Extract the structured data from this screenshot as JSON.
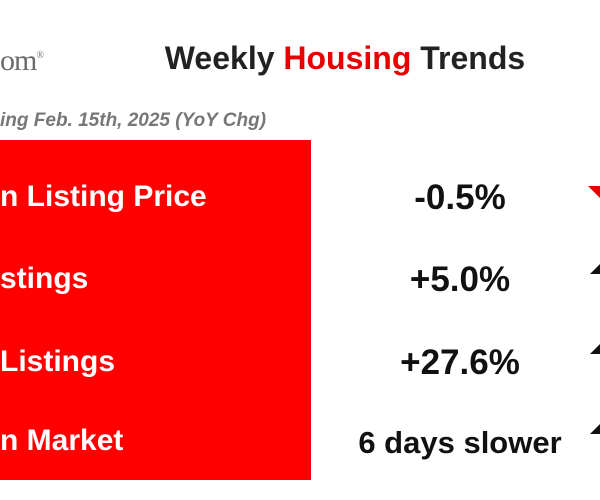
{
  "header": {
    "logo": "om",
    "logo_mark": "®",
    "title": [
      "Weekly ",
      "Housing",
      " Trends"
    ],
    "subtitle": "ing Feb. 15th, 2025 (YoY Chg)"
  },
  "rows": [
    {
      "label": "n Listing Price",
      "value": "-0.5%"
    },
    {
      "label": "stings",
      "value": "+5.0%"
    },
    {
      "label": "Listings",
      "value": "+27.6%"
    },
    {
      "label": "n Market",
      "value": "6 days slower"
    }
  ]
}
